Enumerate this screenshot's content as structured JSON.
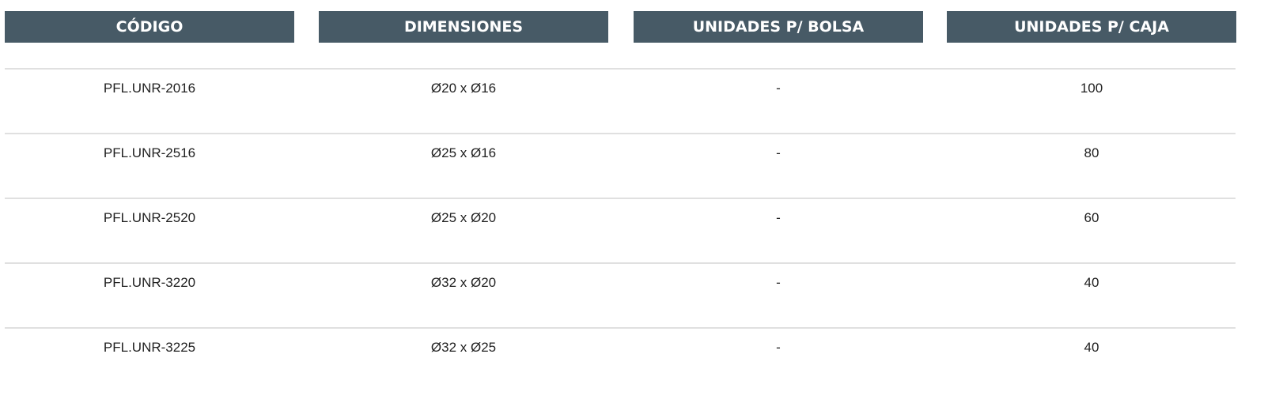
{
  "table": {
    "headers": [
      "CÓDIGO",
      "DIMENSIONES",
      "UNIDADES P/ BOLSA",
      "UNIDADES P/ CAJA"
    ],
    "rows": [
      [
        "PFL.UNR-2016",
        "Ø20 x Ø16",
        "-",
        "100"
      ],
      [
        "PFL.UNR-2516",
        "Ø25 x Ø16",
        "-",
        "80"
      ],
      [
        "PFL.UNR-2520",
        "Ø25 x Ø20",
        "-",
        "60"
      ],
      [
        "PFL.UNR-3220",
        "Ø32 x Ø20",
        "-",
        "40"
      ],
      [
        "PFL.UNR-3225",
        "Ø32 x Ø25",
        "-",
        "40"
      ]
    ]
  },
  "colors": {
    "header_bg": "#475a66",
    "header_text": "#ffffff",
    "divider": "#e0e0e0"
  }
}
